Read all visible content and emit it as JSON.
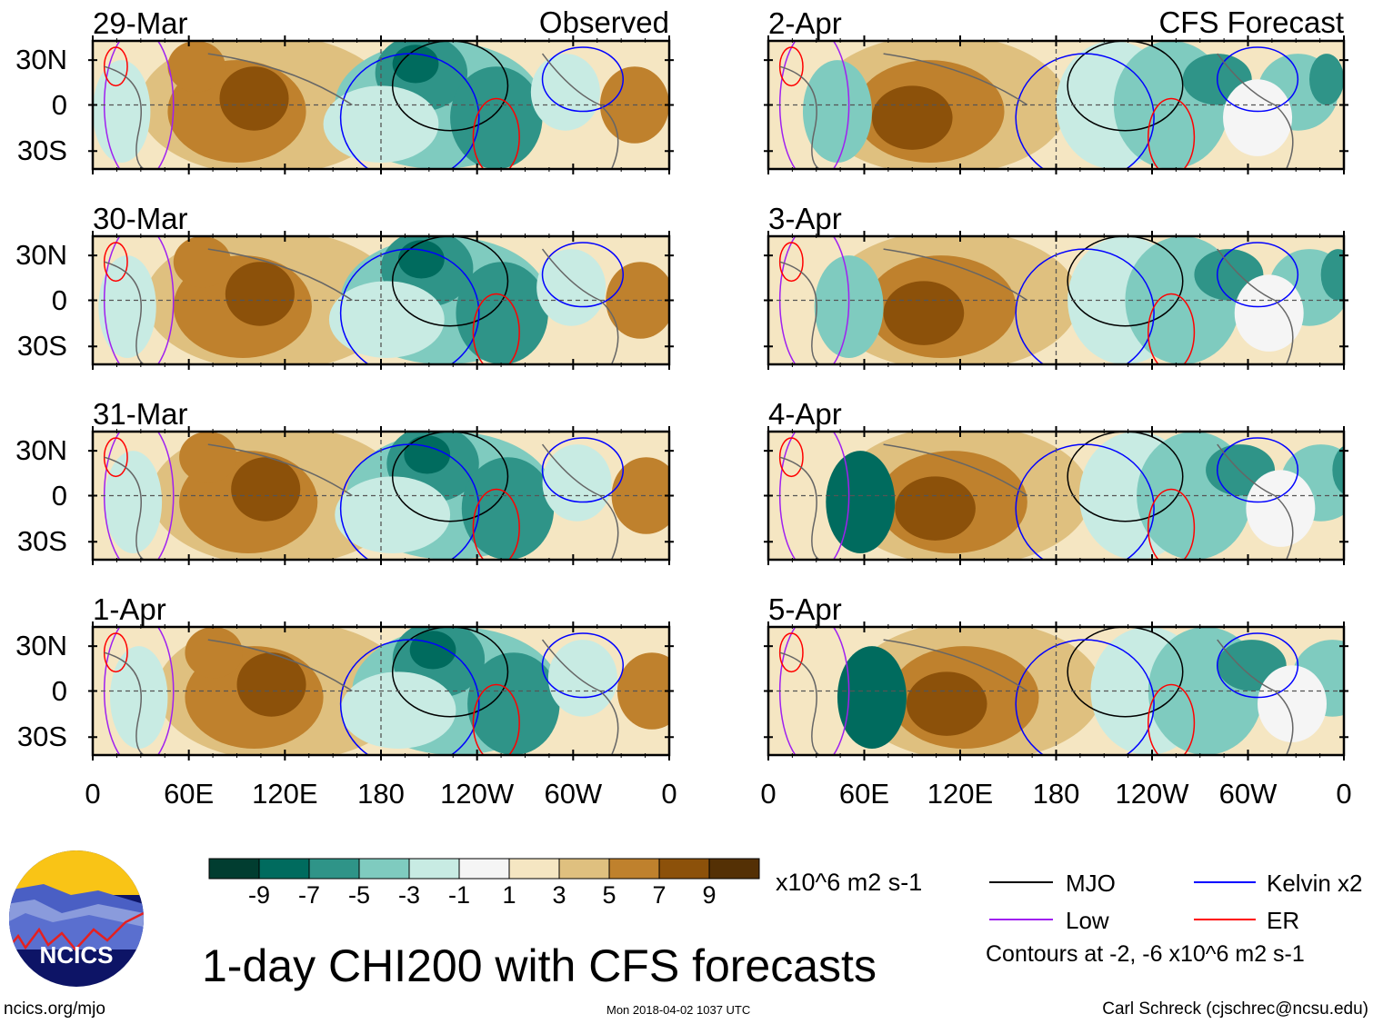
{
  "figure_title": "1-day CHI200 with CFS forecasts",
  "observed_label": "Observed",
  "forecast_label": "CFS Forecast",
  "observed_panels": [
    {
      "date": "29-Mar"
    },
    {
      "date": "30-Mar"
    },
    {
      "date": "31-Mar"
    },
    {
      "date": "1-Apr"
    }
  ],
  "forecast_panels": [
    {
      "date": "2-Apr"
    },
    {
      "date": "3-Apr"
    },
    {
      "date": "4-Apr"
    },
    {
      "date": "5-Apr"
    }
  ],
  "lat_ticks": [
    "30N",
    "0",
    "30S"
  ],
  "lon_ticks": [
    "0",
    "60E",
    "120E",
    "180",
    "120W",
    "60W",
    "0"
  ],
  "colorbar": {
    "labels": [
      "-9",
      "-7",
      "-5",
      "-3",
      "-1",
      "1",
      "3",
      "5",
      "7",
      "9"
    ],
    "colors": [
      "#013d30",
      "#006b5e",
      "#2f9488",
      "#7fcbbf",
      "#c8ebe3",
      "#f5f5f5",
      "#f5e6c2",
      "#dfc07f",
      "#bf812d",
      "#8c510a",
      "#543005"
    ],
    "units": "x10^6 m2 s-1"
  },
  "legend": {
    "items": [
      {
        "label": "MJO",
        "color": "#000000"
      },
      {
        "label": "Kelvin x2",
        "color": "#0000ff"
      },
      {
        "label": "Low",
        "color": "#a020f0"
      },
      {
        "label": "ER",
        "color": "#ff0000"
      }
    ],
    "contours_note": "Contours at -2, -6 x10^6 m2 s-1"
  },
  "logo": {
    "text": "NCICS"
  },
  "footer": {
    "url": "ncics.org/mjo",
    "timestamp": "Mon 2018-04-02 1037 UTC",
    "author": "Carl Schreck (cjschrec@ncsu.edu)"
  }
}
